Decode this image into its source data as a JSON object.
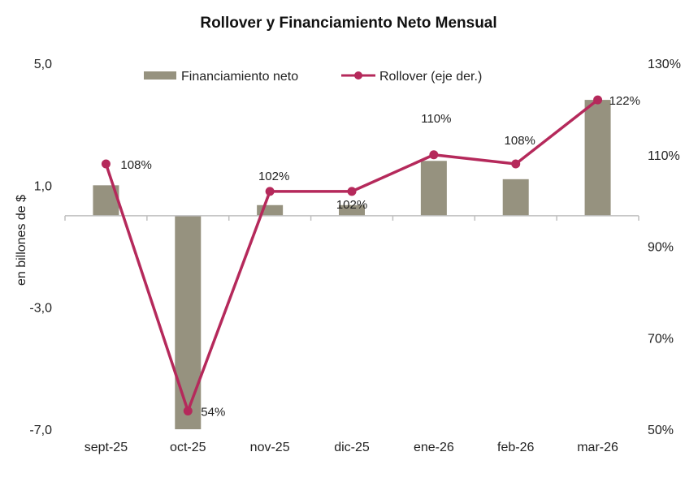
{
  "chart_data": {
    "type": "bar+line",
    "title": "Rollover y Financiamiento Neto Mensual",
    "ylabel": "en billones de $",
    "categories": [
      "sept-25",
      "oct-25",
      "nov-25",
      "dic-25",
      "ene-26",
      "feb-26",
      "mar-26"
    ],
    "series": [
      {
        "name": "Financiamiento neto",
        "kind": "bar",
        "axis": "left",
        "color": "#96927f",
        "values": [
          1.0,
          -7.0,
          0.35,
          0.35,
          1.8,
          1.2,
          3.8
        ]
      },
      {
        "name": "Rollover (eje der.)",
        "kind": "line",
        "axis": "right",
        "color": "#b5295b",
        "values": [
          108,
          54,
          102,
          102,
          110,
          108,
          122
        ],
        "labels": [
          "108%",
          "54%",
          "102%",
          "102%",
          "110%",
          "108%",
          "122%"
        ]
      }
    ],
    "left_axis": {
      "min": -7,
      "max": 5,
      "ticks": [
        "5,0",
        "1,0",
        "-3,0",
        "-7,0"
      ],
      "tick_values": [
        5,
        1,
        -3,
        -7
      ]
    },
    "right_axis": {
      "min": 50,
      "max": 130,
      "ticks": [
        "130%",
        "110%",
        "90%",
        "70%",
        "50%"
      ],
      "tick_values": [
        130,
        110,
        90,
        70,
        50
      ]
    },
    "legend_position": "top-center",
    "grid": false
  }
}
